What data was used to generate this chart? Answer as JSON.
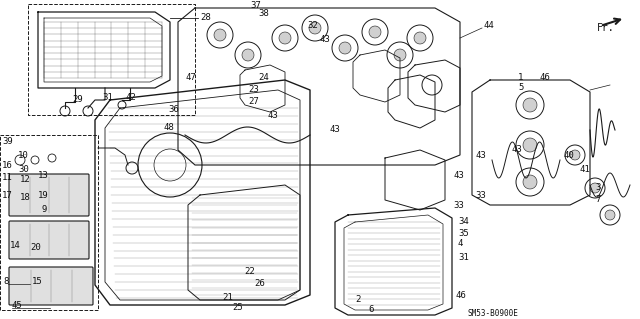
{
  "background_color": "#ffffff",
  "diagram_code": "SM53-B0900E",
  "line_color": "#1a1a1a",
  "text_color": "#111111",
  "font_size": 6.5,
  "fig_width": 6.4,
  "fig_height": 3.19,
  "dpi": 100
}
